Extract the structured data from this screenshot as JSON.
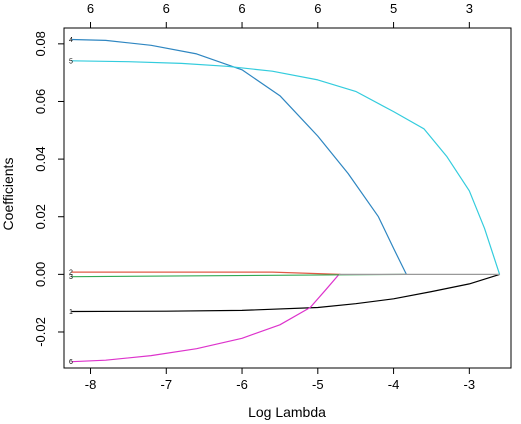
{
  "chart_data": {
    "type": "line",
    "xlabel": "Log Lambda",
    "ylabel": "Coefficients",
    "xlim": [
      -8.35,
      -2.45
    ],
    "ylim": [
      -0.0325,
      0.0855
    ],
    "x_ticks": [
      -8,
      -7,
      -6,
      -5,
      -4,
      -3
    ],
    "y_ticks": [
      -0.02,
      0.0,
      0.02,
      0.04,
      0.06,
      0.08
    ],
    "y_tick_labels": [
      "-0.02",
      "0.00",
      "0.02",
      "0.04",
      "0.06",
      "0.08"
    ],
    "top_axis": {
      "labels": [
        "6",
        "6",
        "6",
        "6",
        "5",
        "3"
      ],
      "positions": [
        -8,
        -7,
        -6,
        -5,
        -4,
        -3
      ]
    },
    "grid": false,
    "series": [
      {
        "label": "4",
        "color": "#2e86c1",
        "x": [
          -8.25,
          -7.8,
          -7.2,
          -6.6,
          -6.0,
          -5.5,
          -5.0,
          -4.6,
          -4.2,
          -4.0,
          -3.83
        ],
        "y": [
          0.0815,
          0.0812,
          0.0795,
          0.0765,
          0.071,
          0.062,
          0.048,
          0.035,
          0.02,
          0.009,
          0.0
        ]
      },
      {
        "label": "5",
        "color": "#33ccdd",
        "x": [
          -8.25,
          -7.5,
          -6.8,
          -6.2,
          -5.6,
          -5.0,
          -4.5,
          -4.0,
          -3.6,
          -3.3,
          -3.0,
          -2.8,
          -2.6
        ],
        "y": [
          0.0741,
          0.0738,
          0.0732,
          0.0722,
          0.0705,
          0.0675,
          0.0635,
          0.0565,
          0.0505,
          0.041,
          0.029,
          0.016,
          0.0
        ]
      },
      {
        "label": "1",
        "color": "#000000",
        "x": [
          -8.25,
          -7.0,
          -6.0,
          -5.0,
          -4.5,
          -4.0,
          -3.5,
          -3.0,
          -2.6
        ],
        "y": [
          -0.0129,
          -0.0128,
          -0.0125,
          -0.0115,
          -0.0102,
          -0.0085,
          -0.006,
          -0.0033,
          0.0
        ]
      },
      {
        "label": "6",
        "color": "#dd33cc",
        "x": [
          -8.25,
          -7.8,
          -7.2,
          -6.6,
          -6.0,
          -5.5,
          -5.1,
          -4.9,
          -4.72
        ],
        "y": [
          -0.0303,
          -0.0298,
          -0.0282,
          -0.0258,
          -0.0222,
          -0.0175,
          -0.0115,
          -0.0055,
          0.0
        ]
      },
      {
        "label": "2",
        "color": "#e05a47",
        "x": [
          -8.25,
          -5.6,
          -4.7
        ],
        "y": [
          0.0008,
          0.0008,
          0.0
        ]
      },
      {
        "label": "3",
        "color": "#33aa55",
        "x": [
          -8.25,
          -3.85
        ],
        "y": [
          -0.0008,
          0.0
        ]
      },
      {
        "label": "",
        "color": "#999999",
        "x": [
          -4.72,
          -2.6
        ],
        "y": [
          0.0,
          0.0
        ]
      }
    ],
    "endpoint_labels": [
      {
        "text": "4",
        "y": 0.0815
      },
      {
        "text": "5",
        "y": 0.0741
      },
      {
        "text": "2",
        "y": 0.0008
      },
      {
        "text": "3",
        "y": -0.0008
      },
      {
        "text": "1",
        "y": -0.0129
      },
      {
        "text": "6",
        "y": -0.0303
      }
    ]
  }
}
